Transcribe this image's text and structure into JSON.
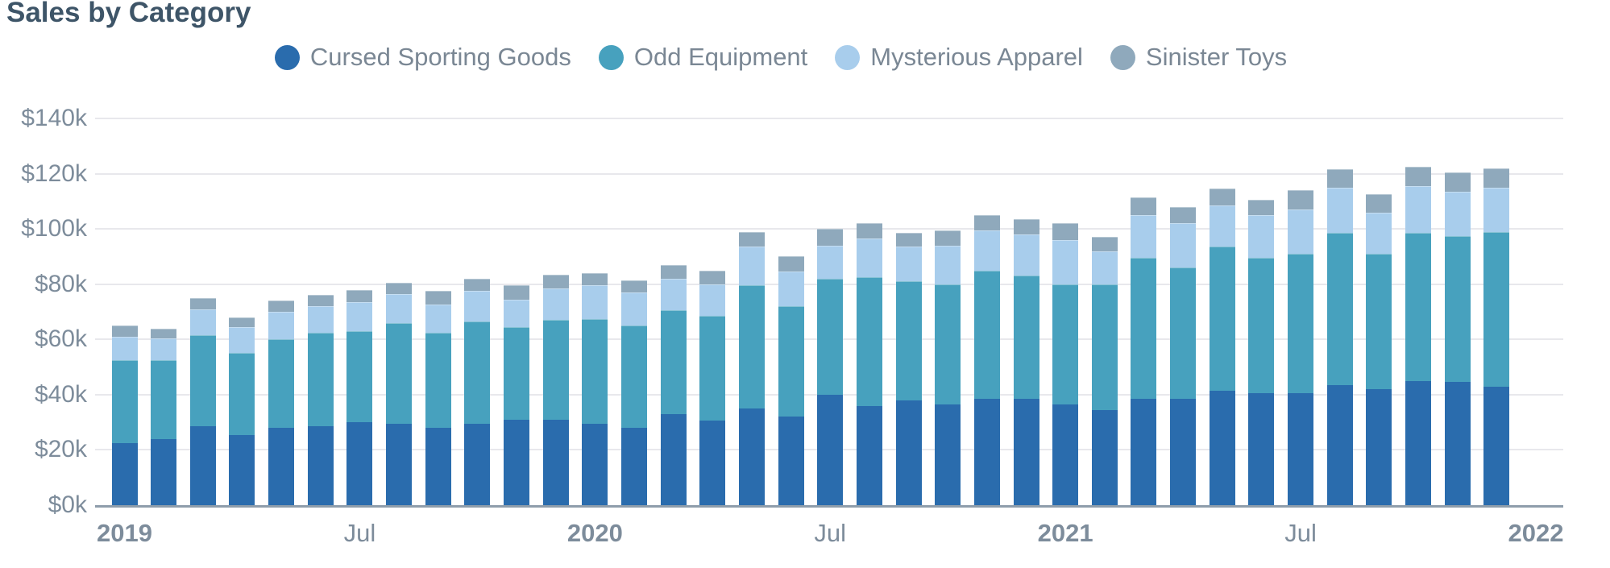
{
  "title": "Sales by Category",
  "palette": {
    "title_text": "#3E5568",
    "axis_text": "#7D8C9B",
    "legend_text": "#7A8794",
    "gridline": "#E8E8EC",
    "axis_line": "#8E9DAB",
    "background": "#FFFFFF"
  },
  "chart_data": {
    "type": "bar",
    "stacked": true,
    "grid": true,
    "legend_position": "top",
    "unit": "USD thousands",
    "ylim": [
      0,
      140
    ],
    "y_ticks": [
      "$140k",
      "$120k",
      "$100k",
      "$80k",
      "$60k",
      "$40k",
      "$20k",
      "$0k"
    ],
    "x_ticks": [
      {
        "label": "2019",
        "month_index": 0,
        "bold": true
      },
      {
        "label": "Jul",
        "month_index": 6,
        "bold": false
      },
      {
        "label": "2020",
        "month_index": 12,
        "bold": true
      },
      {
        "label": "Jul",
        "month_index": 18,
        "bold": false
      },
      {
        "label": "2021",
        "month_index": 24,
        "bold": true
      },
      {
        "label": "Jul",
        "month_index": 30,
        "bold": false
      },
      {
        "label": "2022",
        "month_index": 36,
        "bold": true
      }
    ],
    "months": [
      "2019-01",
      "2019-02",
      "2019-03",
      "2019-04",
      "2019-05",
      "2019-06",
      "2019-07",
      "2019-08",
      "2019-09",
      "2019-10",
      "2019-11",
      "2019-12",
      "2020-01",
      "2020-02",
      "2020-03",
      "2020-04",
      "2020-05",
      "2020-06",
      "2020-07",
      "2020-08",
      "2020-09",
      "2020-10",
      "2020-11",
      "2020-12",
      "2021-01",
      "2021-02",
      "2021-03",
      "2021-04",
      "2021-05",
      "2021-06",
      "2021-07",
      "2021-08",
      "2021-09",
      "2021-10",
      "2021-11",
      "2021-12"
    ],
    "series": [
      {
        "name": "Cursed Sporting Goods",
        "color": "#2A6CAD",
        "values": [
          22.5,
          24,
          28.5,
          25.5,
          28,
          28.5,
          30,
          29.5,
          28,
          29.5,
          31,
          31,
          29.5,
          28,
          33,
          30.5,
          35,
          32,
          40,
          36,
          38,
          36.5,
          38.5,
          38.5,
          36.5,
          34.5,
          38.5,
          38.5,
          41.5,
          40.5,
          40.5,
          43.5,
          42,
          45,
          44.5,
          43
        ]
      },
      {
        "name": "Odd Equipment",
        "color": "#47A1BE",
        "values": [
          30,
          28.5,
          33,
          29.5,
          32,
          34,
          33,
          36.5,
          34.5,
          37,
          33.5,
          36,
          38,
          37,
          37.5,
          38,
          44.5,
          40,
          42,
          46.5,
          43,
          43.5,
          46.5,
          44.5,
          43.5,
          45.5,
          51,
          47.5,
          52,
          49,
          50.5,
          55,
          49,
          53.5,
          53,
          56
        ]
      },
      {
        "name": "Mysterious Apparel",
        "color": "#A8CDEC",
        "values": [
          8.5,
          8,
          9.5,
          9.5,
          10,
          9.5,
          10.5,
          10.5,
          10,
          11,
          10,
          11.5,
          12,
          12,
          11.5,
          11.5,
          14,
          12.5,
          12,
          14,
          12.5,
          14,
          14.5,
          15,
          16,
          12,
          15.5,
          16,
          15,
          15.5,
          16,
          16.5,
          15,
          17,
          16,
          16
        ]
      },
      {
        "name": "Sinister Toys",
        "color": "#8FA9BC",
        "values": [
          4,
          3.5,
          4,
          3.5,
          4,
          4,
          4.5,
          4,
          5,
          4.5,
          5,
          5,
          4.5,
          4.5,
          5,
          5,
          5.5,
          5.5,
          6,
          5.5,
          5,
          5.5,
          5.5,
          5.5,
          6,
          5,
          6.5,
          6,
          6,
          5.5,
          7,
          6.5,
          6.5,
          7,
          7,
          7
        ]
      }
    ]
  }
}
